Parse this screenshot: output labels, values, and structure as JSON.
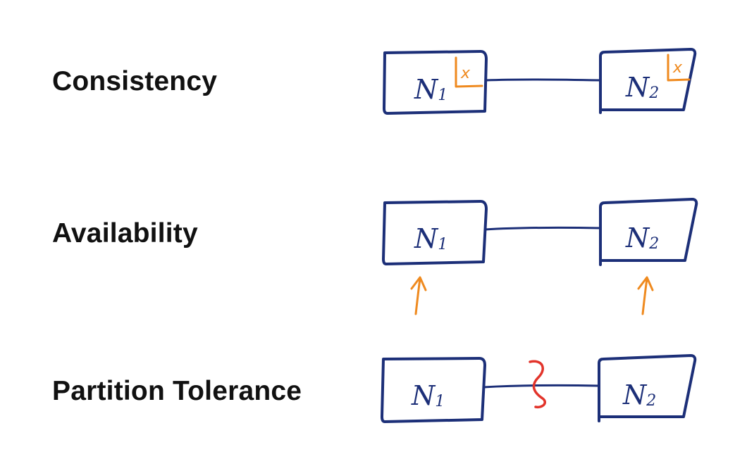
{
  "rows": {
    "consistency": {
      "label": "Consistency"
    },
    "availability": {
      "label": "Availability"
    },
    "partition": {
      "label": "Partition Tolerance"
    }
  },
  "nodes": {
    "n1": {
      "letter": "N",
      "subscript": "1"
    },
    "n2": {
      "letter": "N",
      "subscript": "2"
    }
  },
  "data_value": "x",
  "colors": {
    "node_stroke": "#1c2f78",
    "highlight": "#ef8a1f",
    "partition_break": "#e2342b",
    "label_text": "#111111"
  }
}
